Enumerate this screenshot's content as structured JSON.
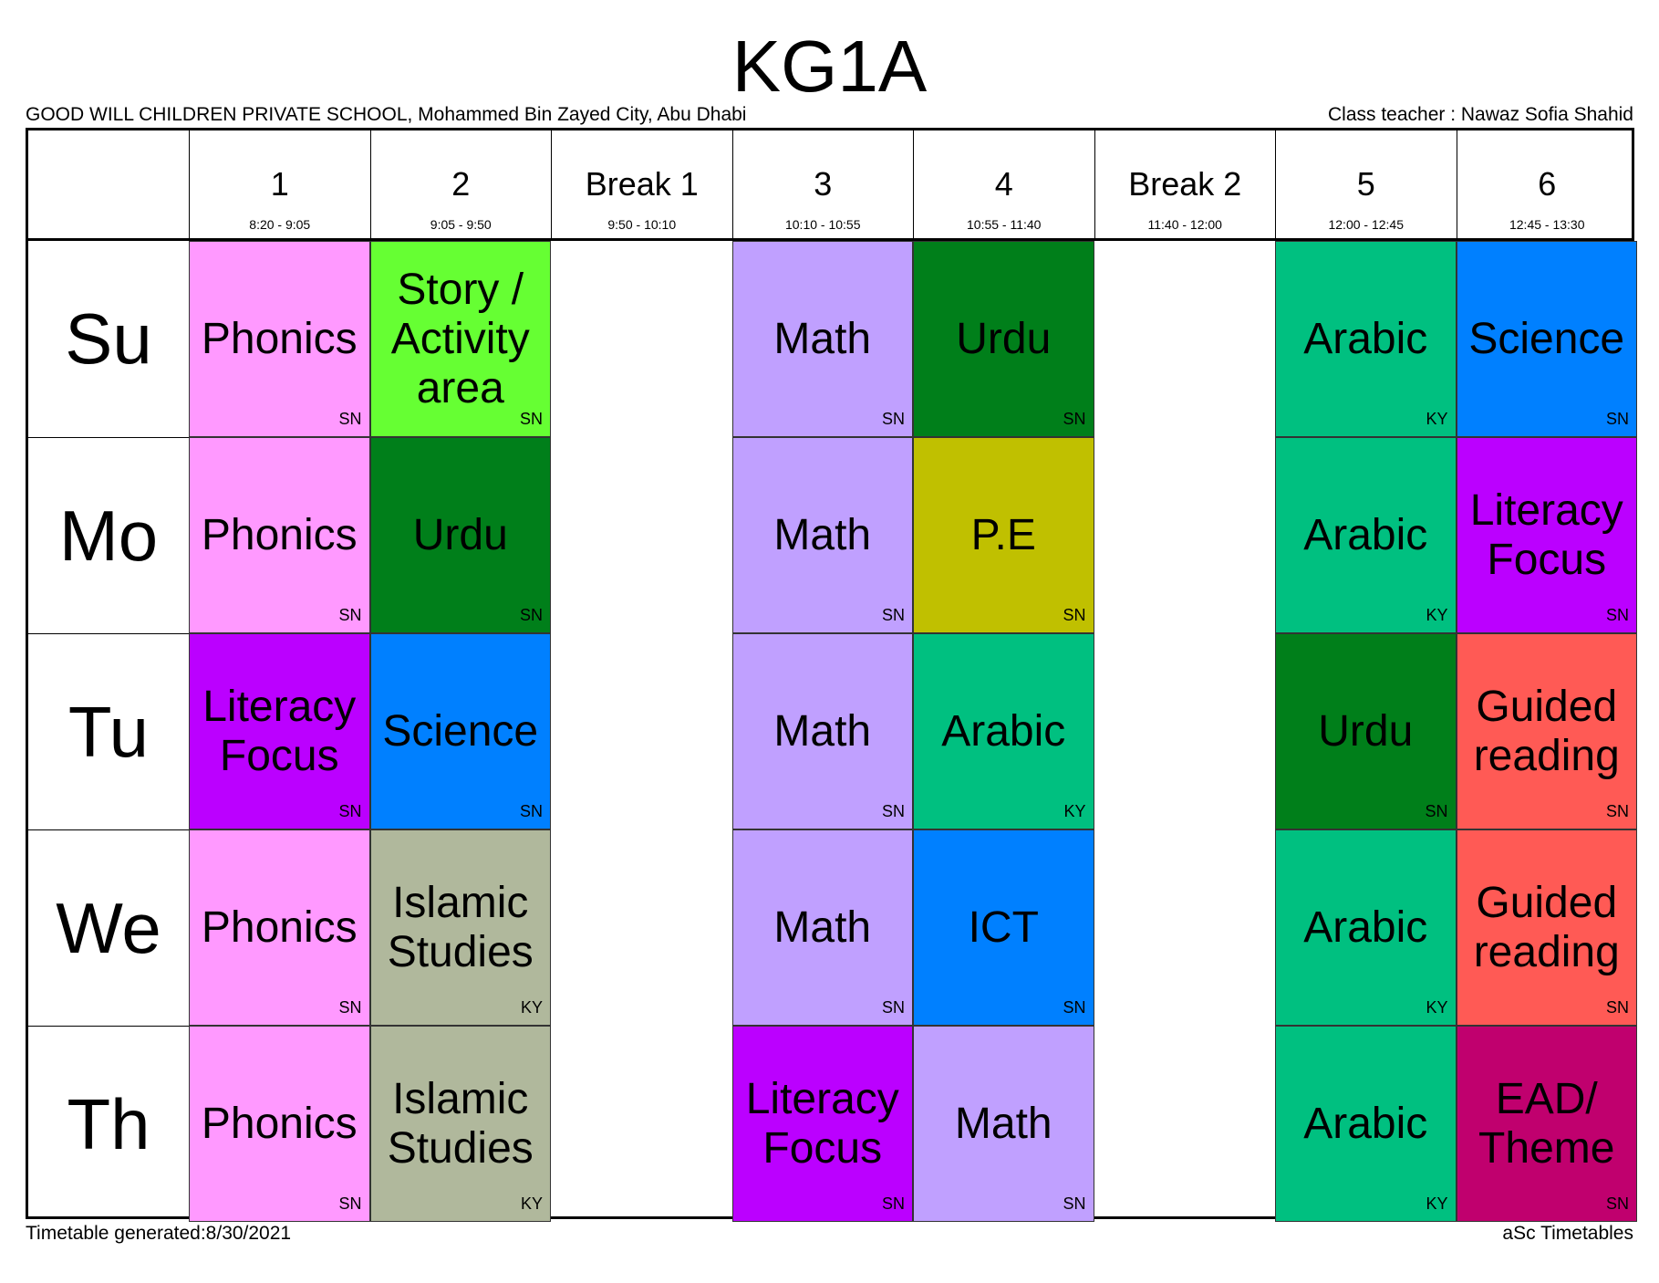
{
  "title": "KG1A",
  "school": "GOOD WILL CHILDREN PRIVATE SCHOOL, Mohammed Bin Zayed City, Abu Dhabi",
  "class_teacher": "Class teacher : Nawaz Sofia Shahid",
  "footer_left": "Timetable generated:8/30/2021",
  "footer_right": "aSc Timetables",
  "periods": [
    {
      "label": "1",
      "time": "8:20 - 9:05"
    },
    {
      "label": "2",
      "time": "9:05 - 9:50"
    },
    {
      "label": "Break 1",
      "time": "9:50 - 10:10"
    },
    {
      "label": "3",
      "time": "10:10 - 10:55"
    },
    {
      "label": "4",
      "time": "10:55 - 11:40"
    },
    {
      "label": "Break 2",
      "time": "11:40 - 12:00"
    },
    {
      "label": "5",
      "time": "12:00 - 12:45"
    },
    {
      "label": "6",
      "time": "12:45 - 13:30"
    }
  ],
  "colors": {
    "Phonics": "#ff99ff",
    "Story / Activity area": "#66ff33",
    "Math": "#c0a0ff",
    "Urdu": "#007f1a",
    "Arabic": "#00c080",
    "Science": "#0080ff",
    "Literacy Focus": "#bb00ff",
    "P.E": "#c0c000",
    "Guided reading": "#ff5a55",
    "Islamic Studies": "#b0b89c",
    "ICT": "#0080ff",
    "EAD/ Theme": "#c0006e"
  },
  "days": [
    {
      "name": "Su",
      "lessons": [
        {
          "subject": "Phonics",
          "teacher": "SN"
        },
        {
          "subject": "Story / Activity area",
          "teacher": "SN"
        },
        null,
        {
          "subject": "Math",
          "teacher": "SN"
        },
        {
          "subject": "Urdu",
          "teacher": "SN"
        },
        null,
        {
          "subject": "Arabic",
          "teacher": "KY"
        },
        {
          "subject": "Science",
          "teacher": "SN"
        }
      ]
    },
    {
      "name": "Mo",
      "lessons": [
        {
          "subject": "Phonics",
          "teacher": "SN"
        },
        {
          "subject": "Urdu",
          "teacher": "SN"
        },
        null,
        {
          "subject": "Math",
          "teacher": "SN"
        },
        {
          "subject": "P.E",
          "teacher": "SN"
        },
        null,
        {
          "subject": "Arabic",
          "teacher": "KY"
        },
        {
          "subject": "Literacy Focus",
          "teacher": "SN"
        }
      ]
    },
    {
      "name": "Tu",
      "lessons": [
        {
          "subject": "Literacy Focus",
          "teacher": "SN"
        },
        {
          "subject": "Science",
          "teacher": "SN"
        },
        null,
        {
          "subject": "Math",
          "teacher": "SN"
        },
        {
          "subject": "Arabic",
          "teacher": "KY"
        },
        null,
        {
          "subject": "Urdu",
          "teacher": "SN"
        },
        {
          "subject": "Guided reading",
          "teacher": "SN"
        }
      ]
    },
    {
      "name": "We",
      "lessons": [
        {
          "subject": "Phonics",
          "teacher": "SN"
        },
        {
          "subject": "Islamic Studies",
          "teacher": "KY"
        },
        null,
        {
          "subject": "Math",
          "teacher": "SN"
        },
        {
          "subject": "ICT",
          "teacher": "SN"
        },
        null,
        {
          "subject": "Arabic",
          "teacher": "KY"
        },
        {
          "subject": "Guided reading",
          "teacher": "SN"
        }
      ]
    },
    {
      "name": "Th",
      "lessons": [
        {
          "subject": "Phonics",
          "teacher": "SN"
        },
        {
          "subject": "Islamic Studies",
          "teacher": "KY"
        },
        null,
        {
          "subject": "Literacy Focus",
          "teacher": "SN"
        },
        {
          "subject": "Math",
          "teacher": "SN"
        },
        null,
        {
          "subject": "Arabic",
          "teacher": "KY"
        },
        {
          "subject": "EAD/ Theme",
          "teacher": "SN"
        }
      ]
    }
  ]
}
